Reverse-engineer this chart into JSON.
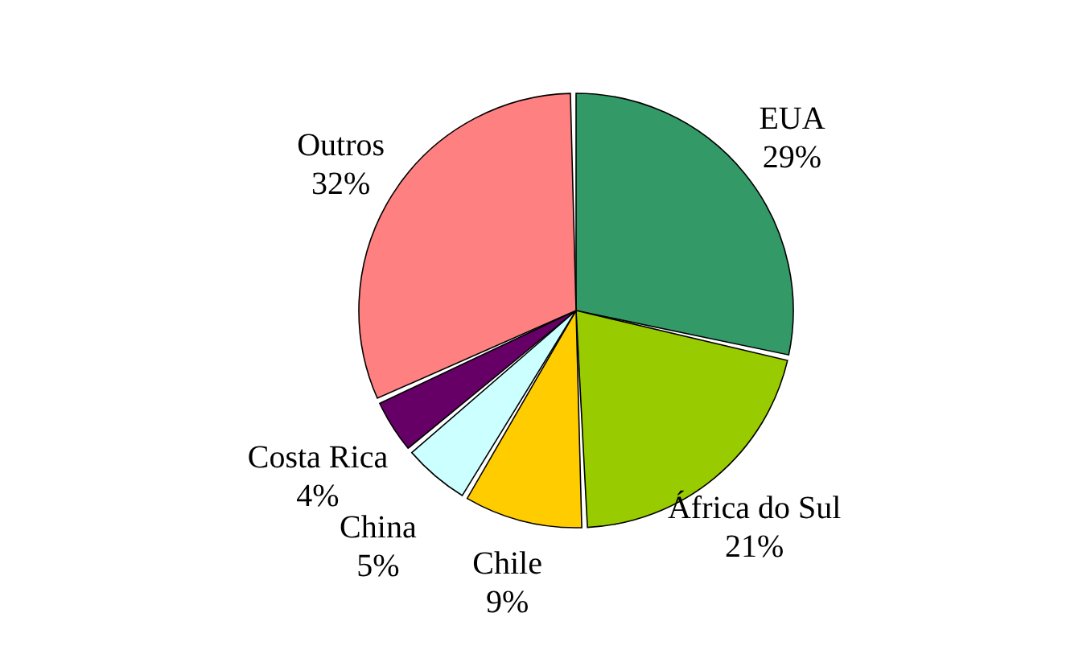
{
  "chart_data": {
    "type": "pie",
    "categories": [
      "EUA",
      "África do Sul",
      "Chile",
      "China",
      "Costa Rica",
      "Outros"
    ],
    "values": [
      29,
      21,
      9,
      5,
      4,
      32
    ],
    "value_labels": [
      "29%",
      "21%",
      "9%",
      "5%",
      "4%",
      "32%"
    ],
    "colors": [
      "#339966",
      "#99cc00",
      "#ffcc00",
      "#ccffff",
      "#660066",
      "#ff8080"
    ],
    "legend": false
  }
}
